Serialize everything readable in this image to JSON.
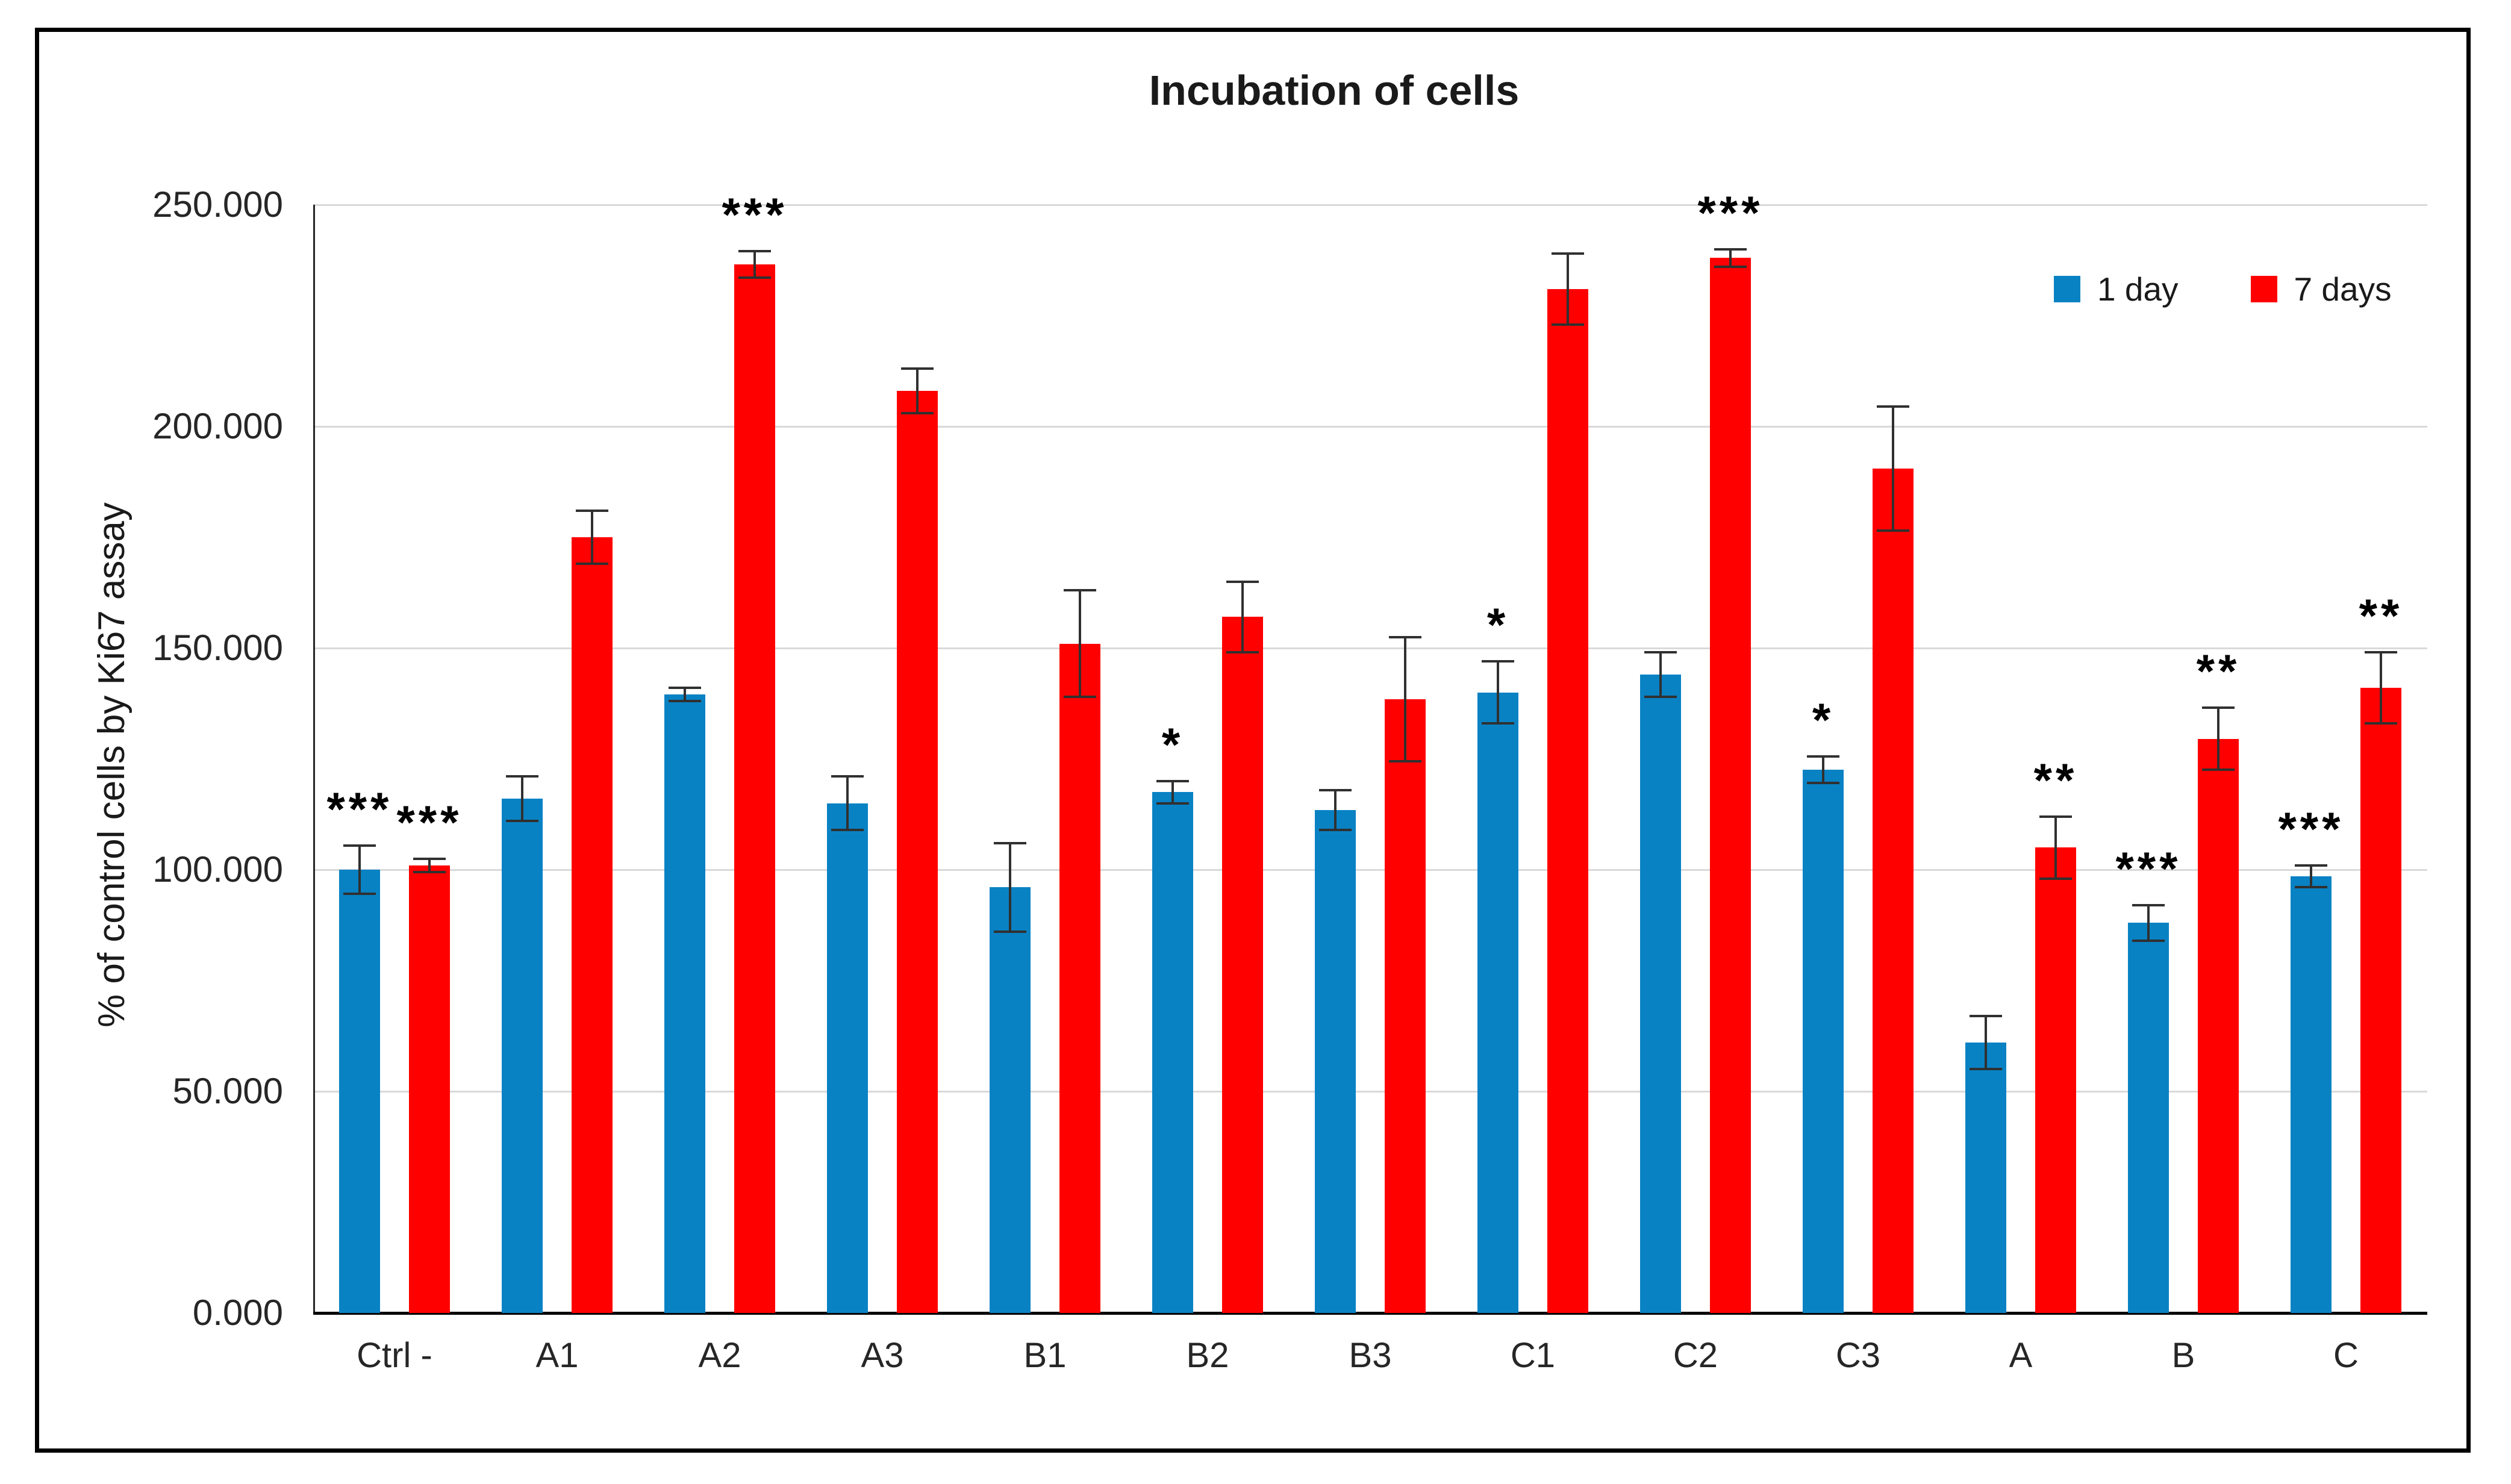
{
  "title": "Incubation of cells",
  "y_axis": {
    "title": "% of control cells by Ki67 assay",
    "tick_labels": [
      "250.000",
      "200.000",
      "150.000",
      "100.000",
      "50.000",
      "0.000"
    ],
    "tick_values": [
      250,
      200,
      150,
      100,
      50,
      0
    ]
  },
  "legend": {
    "items": [
      {
        "label": "1 day",
        "color": "#0982c4"
      },
      {
        "label": "7 days",
        "color": "#fe0000"
      }
    ]
  },
  "colors": {
    "series_1_day": "#0982c4",
    "series_7_days": "#fe0000",
    "gridline": "#d9d9d9",
    "axis": "#000000",
    "error_bar": "#303030",
    "text": "#1a1a1a"
  },
  "chart_data": {
    "type": "bar",
    "title": "Incubation of cells",
    "xlabel": "",
    "ylabel": "% of control cells by Ki67 assay",
    "ylim": [
      0,
      250
    ],
    "y_tick_step": 50,
    "grid": true,
    "legend_position": "top-right",
    "categories": [
      "Ctrl -",
      "A1",
      "A2",
      "A3",
      "B1",
      "B2",
      "B3",
      "C1",
      "C2",
      "C3",
      "A",
      "B",
      "C"
    ],
    "series": [
      {
        "name": "1 day",
        "color": "#0982c4",
        "values": [
          100,
          116,
          139.5,
          115,
          96,
          117.5,
          113.5,
          140,
          144,
          122.5,
          61,
          88,
          98.5
        ],
        "errors": [
          5.5,
          5,
          1.5,
          6,
          10,
          2.5,
          4.5,
          7,
          5,
          3,
          6,
          4,
          2.5
        ],
        "significance": [
          "***",
          "",
          "",
          "",
          "",
          "*",
          "",
          "*",
          "",
          "*",
          "",
          "***",
          "***"
        ]
      },
      {
        "name": "7 days",
        "color": "#fe0000",
        "values": [
          101,
          175,
          236.5,
          208,
          151,
          157,
          138.5,
          231,
          238,
          190.5,
          105,
          129.5,
          141
        ],
        "errors": [
          1.5,
          6,
          3,
          5,
          12,
          8,
          14,
          8,
          2,
          14,
          7,
          7,
          8
        ],
        "significance": [
          "***",
          "",
          "***",
          "",
          "",
          "",
          "",
          "",
          "***",
          "",
          "**",
          "**",
          "**"
        ]
      }
    ]
  }
}
